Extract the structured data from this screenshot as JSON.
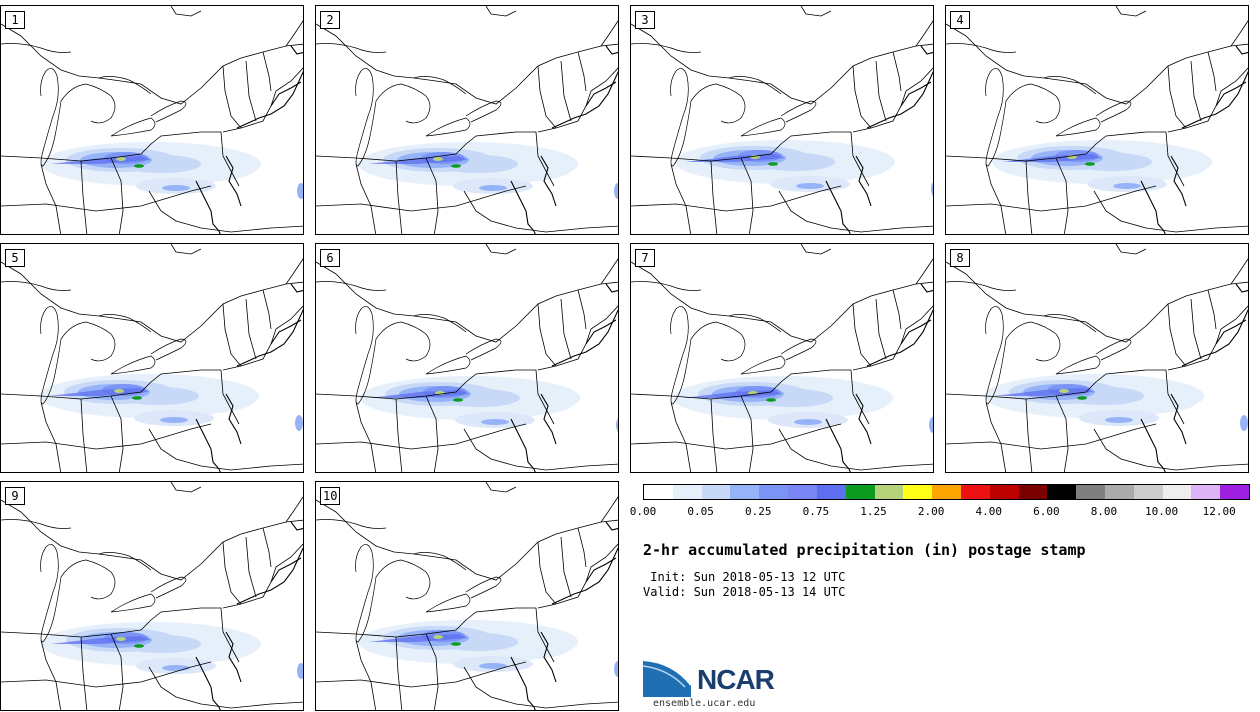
{
  "panels": [
    {
      "label": "1"
    },
    {
      "label": "2"
    },
    {
      "label": "3"
    },
    {
      "label": "4"
    },
    {
      "label": "5"
    },
    {
      "label": "6"
    },
    {
      "label": "7"
    },
    {
      "label": "8"
    },
    {
      "label": "9"
    },
    {
      "label": "10"
    }
  ],
  "colorbar": {
    "colors": [
      "#ffffff",
      "#e6f0fb",
      "#c8d9f8",
      "#96b3f7",
      "#7b94f5",
      "#7a86f5",
      "#5d6ff0",
      "#0a9b1f",
      "#b5d27a",
      "#ffff19",
      "#ffa500",
      "#ee1111",
      "#bb0000",
      "#7a0000",
      "#000000",
      "#7f7f7f",
      "#ababab",
      "#cccccc",
      "#eeeeee",
      "#ddb3f5",
      "#9d1fe0"
    ],
    "ticks": [
      "0.00",
      "0.05",
      "0.25",
      "0.75",
      "1.25",
      "2.00",
      "4.00",
      "6.00",
      "8.00",
      "10.00",
      "12.00"
    ]
  },
  "title": "2-hr accumulated precipitation (in) postage stamp",
  "init": " Init: Sun 2018-05-13 12 UTC",
  "valid": "Valid: Sun 2018-05-13 14 UTC",
  "logo": {
    "text": "NCAR",
    "subtitle": "ensemble.ucar.edu",
    "colors": {
      "blue": "#1f6fb5",
      "dark": "#1a3e6e"
    }
  }
}
